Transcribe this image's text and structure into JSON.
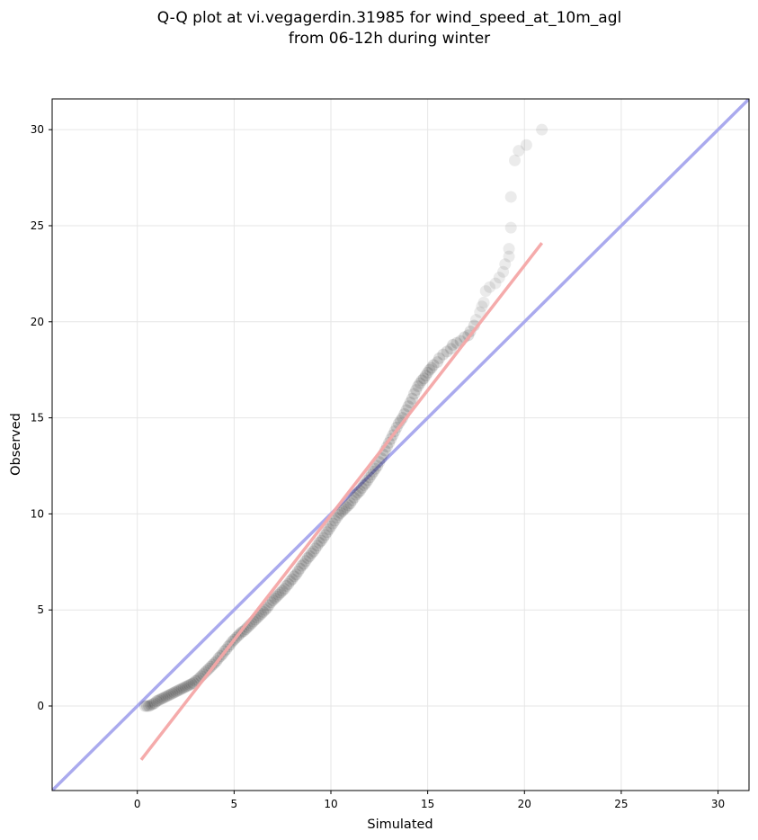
{
  "chart_data": {
    "type": "scatter",
    "title_line1": "Q-Q plot at vi.vegagerdin.31985 for wind_speed_at_10m_agl",
    "title_line2": "from 06-12h during winter",
    "xlabel": "Simulated",
    "ylabel": "Observed",
    "xlim": [
      -4.4,
      31.6
    ],
    "ylim": [
      -4.4,
      31.6
    ],
    "xticks": [
      0,
      5,
      10,
      15,
      20,
      25,
      30
    ],
    "yticks": [
      0,
      5,
      10,
      15,
      20,
      25,
      30
    ],
    "xtick_labels": [
      "0",
      "5",
      "10",
      "15",
      "20",
      "25",
      "30"
    ],
    "ytick_labels": [
      "0",
      "5",
      "10",
      "15",
      "20",
      "25",
      "30"
    ],
    "grid": true,
    "legend": "none",
    "reference_line": {
      "name": "1:1 line",
      "x": [
        -4.4,
        31.6
      ],
      "y": [
        -4.4,
        31.6
      ],
      "color": "#aaaaee"
    },
    "fit_line": {
      "name": "fit line",
      "x": [
        0.2,
        20.9
      ],
      "y": [
        -2.8,
        24.1
      ],
      "color": "#f4a6a6"
    },
    "marker_color": "#000000",
    "series": [
      {
        "values": [
          [
            0.4,
            0.0
          ],
          [
            0.5,
            0.0
          ],
          [
            0.6,
            0.0
          ],
          [
            0.7,
            0.05
          ],
          [
            0.8,
            0.1
          ],
          [
            0.9,
            0.15
          ],
          [
            1.0,
            0.25
          ],
          [
            1.1,
            0.3
          ],
          [
            1.2,
            0.35
          ],
          [
            1.3,
            0.4
          ],
          [
            1.4,
            0.45
          ],
          [
            1.5,
            0.5
          ],
          [
            1.6,
            0.55
          ],
          [
            1.7,
            0.6
          ],
          [
            1.8,
            0.65
          ],
          [
            1.9,
            0.7
          ],
          [
            2.0,
            0.75
          ],
          [
            2.1,
            0.8
          ],
          [
            2.2,
            0.85
          ],
          [
            2.3,
            0.9
          ],
          [
            2.4,
            0.95
          ],
          [
            2.5,
            1.0
          ],
          [
            2.6,
            1.05
          ],
          [
            2.7,
            1.1
          ],
          [
            2.8,
            1.15
          ],
          [
            2.9,
            1.2
          ],
          [
            3.0,
            1.3
          ],
          [
            3.1,
            1.35
          ],
          [
            3.2,
            1.45
          ],
          [
            3.3,
            1.55
          ],
          [
            3.4,
            1.65
          ],
          [
            3.5,
            1.75
          ],
          [
            3.6,
            1.85
          ],
          [
            3.7,
            1.95
          ],
          [
            3.8,
            2.05
          ],
          [
            3.9,
            2.15
          ],
          [
            4.0,
            2.25
          ],
          [
            4.1,
            2.35
          ],
          [
            4.2,
            2.5
          ],
          [
            4.3,
            2.6
          ],
          [
            4.4,
            2.7
          ],
          [
            4.5,
            2.85
          ],
          [
            4.6,
            2.95
          ],
          [
            4.7,
            3.1
          ],
          [
            4.8,
            3.2
          ],
          [
            4.9,
            3.35
          ],
          [
            5.0,
            3.45
          ],
          [
            5.1,
            3.55
          ],
          [
            5.2,
            3.65
          ],
          [
            5.3,
            3.75
          ],
          [
            5.4,
            3.85
          ],
          [
            5.5,
            3.9
          ],
          [
            5.6,
            4.0
          ],
          [
            5.7,
            4.1
          ],
          [
            5.8,
            4.2
          ],
          [
            5.9,
            4.3
          ],
          [
            6.0,
            4.4
          ],
          [
            6.1,
            4.5
          ],
          [
            6.2,
            4.6
          ],
          [
            6.3,
            4.7
          ],
          [
            6.4,
            4.8
          ],
          [
            6.5,
            4.9
          ],
          [
            6.6,
            5.0
          ],
          [
            6.7,
            5.1
          ],
          [
            6.8,
            5.25
          ],
          [
            6.9,
            5.4
          ],
          [
            7.0,
            5.5
          ],
          [
            7.1,
            5.6
          ],
          [
            7.2,
            5.7
          ],
          [
            7.3,
            5.8
          ],
          [
            7.4,
            5.9
          ],
          [
            7.5,
            6.0
          ],
          [
            7.6,
            6.1
          ],
          [
            7.7,
            6.25
          ],
          [
            7.8,
            6.35
          ],
          [
            7.9,
            6.5
          ],
          [
            8.0,
            6.6
          ],
          [
            8.1,
            6.75
          ],
          [
            8.2,
            6.85
          ],
          [
            8.3,
            7.0
          ],
          [
            8.4,
            7.15
          ],
          [
            8.5,
            7.3
          ],
          [
            8.6,
            7.4
          ],
          [
            8.7,
            7.55
          ],
          [
            8.8,
            7.7
          ],
          [
            8.9,
            7.8
          ],
          [
            9.0,
            7.95
          ],
          [
            9.1,
            8.05
          ],
          [
            9.2,
            8.2
          ],
          [
            9.3,
            8.35
          ],
          [
            9.4,
            8.5
          ],
          [
            9.5,
            8.6
          ],
          [
            9.6,
            8.75
          ],
          [
            9.7,
            8.9
          ],
          [
            9.8,
            9.05
          ],
          [
            9.9,
            9.2
          ],
          [
            10.0,
            9.35
          ],
          [
            10.1,
            9.5
          ],
          [
            10.2,
            9.65
          ],
          [
            10.3,
            9.8
          ],
          [
            10.4,
            9.95
          ],
          [
            10.5,
            10.05
          ],
          [
            10.6,
            10.15
          ],
          [
            10.7,
            10.25
          ],
          [
            10.8,
            10.35
          ],
          [
            10.9,
            10.45
          ],
          [
            11.0,
            10.55
          ],
          [
            11.1,
            10.7
          ],
          [
            11.2,
            10.85
          ],
          [
            11.3,
            11.0
          ],
          [
            11.4,
            11.1
          ],
          [
            11.5,
            11.2
          ],
          [
            11.6,
            11.35
          ],
          [
            11.7,
            11.5
          ],
          [
            11.8,
            11.6
          ],
          [
            11.9,
            11.75
          ],
          [
            12.0,
            11.9
          ],
          [
            12.1,
            12.05
          ],
          [
            12.2,
            12.2
          ],
          [
            12.3,
            12.35
          ],
          [
            12.4,
            12.5
          ],
          [
            12.5,
            12.7
          ],
          [
            12.6,
            12.9
          ],
          [
            12.7,
            13.1
          ],
          [
            12.8,
            13.3
          ],
          [
            12.9,
            13.5
          ],
          [
            13.0,
            13.7
          ],
          [
            13.1,
            13.9
          ],
          [
            13.2,
            14.1
          ],
          [
            13.3,
            14.3
          ],
          [
            13.4,
            14.5
          ],
          [
            13.5,
            14.7
          ],
          [
            13.6,
            14.85
          ],
          [
            13.7,
            15.0
          ],
          [
            13.8,
            15.2
          ],
          [
            13.9,
            15.4
          ],
          [
            14.0,
            15.6
          ],
          [
            14.1,
            15.8
          ],
          [
            14.2,
            16.0
          ],
          [
            14.3,
            16.25
          ],
          [
            14.4,
            16.45
          ],
          [
            14.5,
            16.65
          ],
          [
            14.6,
            16.8
          ],
          [
            14.7,
            16.95
          ],
          [
            14.8,
            17.05
          ],
          [
            14.9,
            17.2
          ],
          [
            15.0,
            17.35
          ],
          [
            15.1,
            17.5
          ],
          [
            15.2,
            17.6
          ],
          [
            15.3,
            17.75
          ],
          [
            15.5,
            17.9
          ],
          [
            15.6,
            18.1
          ],
          [
            15.8,
            18.3
          ],
          [
            16.0,
            18.45
          ],
          [
            16.2,
            18.6
          ],
          [
            16.3,
            18.8
          ],
          [
            16.5,
            18.9
          ],
          [
            16.7,
            19.0
          ],
          [
            16.9,
            19.2
          ],
          [
            17.1,
            19.3
          ],
          [
            17.2,
            19.5
          ],
          [
            17.4,
            19.8
          ],
          [
            17.5,
            20.1
          ],
          [
            17.7,
            20.5
          ],
          [
            17.8,
            20.8
          ],
          [
            17.9,
            21.0
          ],
          [
            18.0,
            21.6
          ],
          [
            18.2,
            21.8
          ],
          [
            18.5,
            22.0
          ],
          [
            18.7,
            22.3
          ],
          [
            18.9,
            22.6
          ],
          [
            19.0,
            23.0
          ],
          [
            19.2,
            23.4
          ],
          [
            19.2,
            23.8
          ],
          [
            19.3,
            24.9
          ],
          [
            19.3,
            26.5
          ],
          [
            19.5,
            28.4
          ],
          [
            19.7,
            28.9
          ],
          [
            20.1,
            29.2
          ],
          [
            20.9,
            30.0
          ]
        ]
      }
    ]
  }
}
